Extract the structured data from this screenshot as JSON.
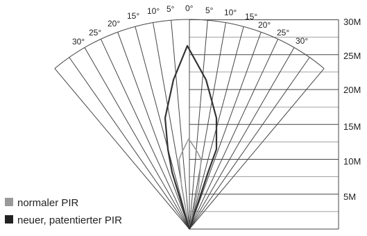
{
  "diagram": {
    "angle_labels_left": [
      "30°",
      "25°",
      "20°",
      "15°",
      "10°",
      "5°",
      "0°"
    ],
    "angle_labels_right": [
      "5°",
      "10°",
      "15°",
      "20°",
      "25°",
      "30°"
    ],
    "distance_labels": [
      "30M",
      "25M",
      "20M",
      "15M",
      "10M",
      "5M"
    ],
    "legend": [
      {
        "label": "normaler PIR",
        "color": "#999999"
      },
      {
        "label": "neuer, patentierter PIR",
        "color": "#222222"
      }
    ],
    "colors": {
      "grid": "#444444",
      "normal_pir": "#999999",
      "patented_pir": "#333333"
    },
    "detection_range_m": {
      "normal_pir": 16,
      "patented_pir": 26
    }
  }
}
